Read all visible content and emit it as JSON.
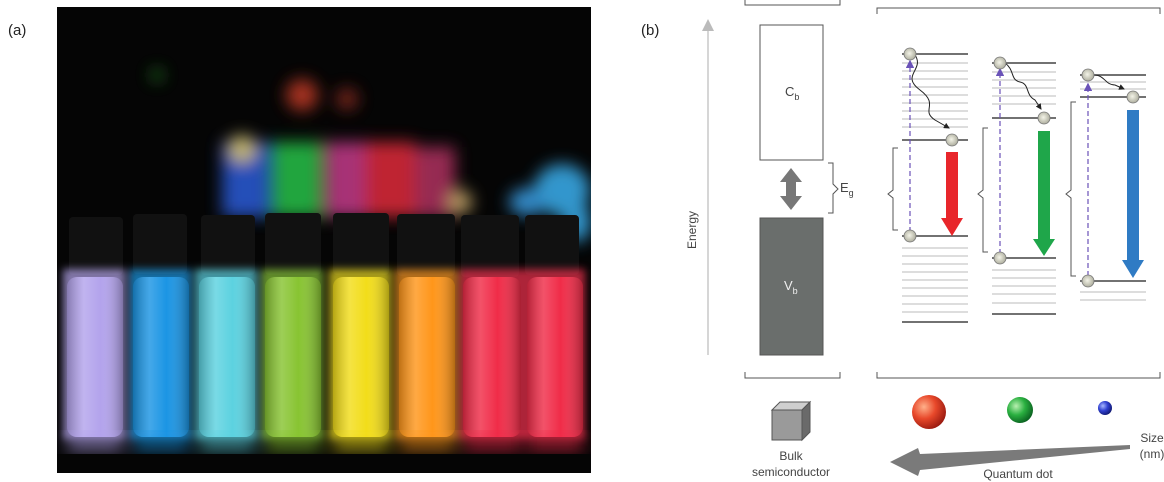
{
  "panel_a": {
    "label": "(a)"
  },
  "panel_b": {
    "label": "(b)",
    "energy_axis_label": "Energy",
    "conduction_band": {
      "letter": "C",
      "subscript": "b"
    },
    "valence_band": {
      "letter": "V",
      "subscript": "b"
    },
    "bandgap": {
      "letter": "E",
      "subscript": "g"
    },
    "bulk_label_line1": "Bulk",
    "bulk_label_line2": "semiconductor",
    "quantum_dot_label": "Quantum dot",
    "size_label_line1": "Size",
    "size_label_line2": "(nm)",
    "emission_colors": {
      "red": "#e8262b",
      "green": "#1fa64a",
      "blue": "#2f7bc4"
    }
  }
}
